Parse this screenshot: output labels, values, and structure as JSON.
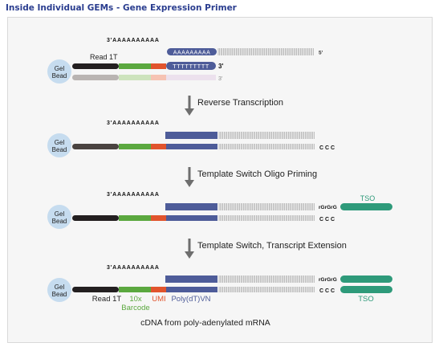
{
  "title": "Inside Individual GEMs - Gene Expression Primer",
  "gel_bead_label": "Gel Bead",
  "poly_a_tail": "3'AAAAAAAAAA",
  "poly_a_inline": "AAAAAAAAA",
  "poly_t_inline": "TTTTTTTTT",
  "prime3": "3'",
  "prime5": "5'",
  "ccc": "C C C",
  "rgrgrg": "rGrGrG",
  "tso": "TSO",
  "steps": [
    {
      "label": "Reverse Transcription"
    },
    {
      "label": "Template Switch Oligo Priming"
    },
    {
      "label": "Template Switch, Transcript Extension"
    }
  ],
  "labels": {
    "read1t": "Read 1T",
    "barcode_line1": "10x",
    "barcode_line2": "Barcode",
    "umi": "UMI",
    "polydt": "Poly(dT)VN",
    "tso": "TSO"
  },
  "caption": "cDNA from poly-adenylated mRNA",
  "colors": {
    "title": "#2a3d8f",
    "read1t": "#231f20",
    "barcode": "#5ba83f",
    "umi": "#e1542d",
    "polydt": "#4e5c99",
    "tso": "#2e9a7a",
    "bead": "#c6dcef"
  }
}
